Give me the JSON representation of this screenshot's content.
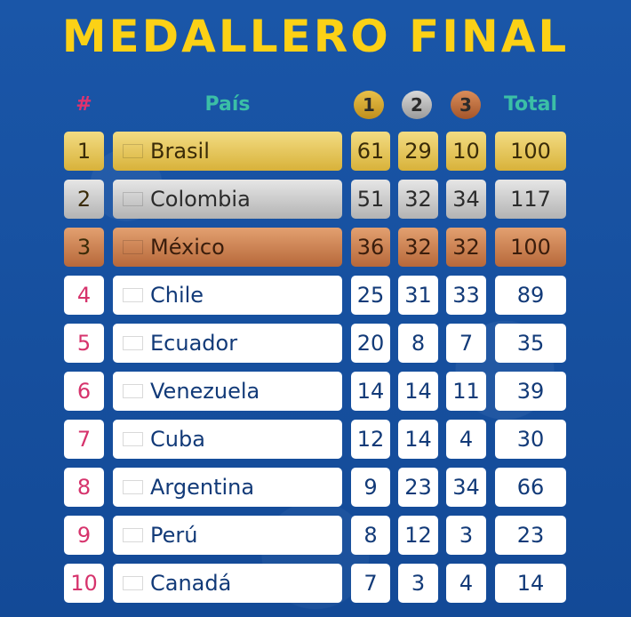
{
  "title": "MEDALLERO FINAL",
  "headers": {
    "rank": "#",
    "country": "País",
    "gold": "1",
    "silver": "2",
    "bronze": "3",
    "total": "Total"
  },
  "colors": {
    "title": "#fcd116",
    "header": "#3bbfa6",
    "rank": "#d6336c",
    "background": "#174f9e",
    "text": "#123a78"
  },
  "rows": [
    {
      "pos": "1",
      "country": "Brasil",
      "flag": "brazil-flag-icon",
      "gold": "61",
      "silver": "29",
      "bronze": "10",
      "total": "100",
      "tier": "gold"
    },
    {
      "pos": "2",
      "country": "Colombia",
      "flag": "colombia-flag-icon",
      "gold": "51",
      "silver": "32",
      "bronze": "34",
      "total": "117",
      "tier": "silver"
    },
    {
      "pos": "3",
      "country": "México",
      "flag": "mexico-flag-icon",
      "gold": "36",
      "silver": "32",
      "bronze": "32",
      "total": "100",
      "tier": "bronze"
    },
    {
      "pos": "4",
      "country": "Chile",
      "flag": "chile-flag-icon",
      "gold": "25",
      "silver": "31",
      "bronze": "33",
      "total": "89",
      "tier": ""
    },
    {
      "pos": "5",
      "country": "Ecuador",
      "flag": "ecuador-flag-icon",
      "gold": "20",
      "silver": "8",
      "bronze": "7",
      "total": "35",
      "tier": ""
    },
    {
      "pos": "6",
      "country": "Venezuela",
      "flag": "venezuela-flag-icon",
      "gold": "14",
      "silver": "14",
      "bronze": "11",
      "total": "39",
      "tier": ""
    },
    {
      "pos": "7",
      "country": "Cuba",
      "flag": "cuba-flag-icon",
      "gold": "12",
      "silver": "14",
      "bronze": "4",
      "total": "30",
      "tier": ""
    },
    {
      "pos": "8",
      "country": "Argentina",
      "flag": "argentina-flag-icon",
      "gold": "9",
      "silver": "23",
      "bronze": "34",
      "total": "66",
      "tier": ""
    },
    {
      "pos": "9",
      "country": "Perú",
      "flag": "peru-flag-icon",
      "gold": "8",
      "silver": "12",
      "bronze": "3",
      "total": "23",
      "tier": ""
    },
    {
      "pos": "10",
      "country": "Canadá",
      "flag": "canada-flag-icon",
      "gold": "7",
      "silver": "3",
      "bronze": "4",
      "total": "14",
      "tier": ""
    }
  ]
}
